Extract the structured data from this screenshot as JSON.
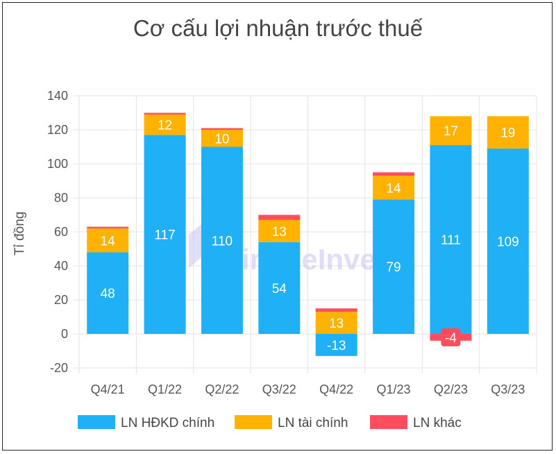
{
  "chart_data": {
    "type": "bar",
    "stacked": true,
    "title": "Cơ cấu lợi nhuận trước thuế",
    "ylabel": "Tỉ đồng",
    "xlabel": "",
    "categories": [
      "Q4/21",
      "Q1/22",
      "Q2/22",
      "Q3/22",
      "Q4/22",
      "Q1/23",
      "Q2/23",
      "Q3/23"
    ],
    "ylim": [
      -20,
      140
    ],
    "yticks": [
      -20,
      0,
      20,
      40,
      60,
      80,
      100,
      120,
      140
    ],
    "grid": true,
    "legend_position": "bottom",
    "series": [
      {
        "name": "LN HĐKD chính",
        "color": "#1fb0f5",
        "values": [
          48,
          117,
          110,
          54,
          -13,
          79,
          111,
          109
        ],
        "labels": [
          "48",
          "117",
          "110",
          "54",
          "-13",
          "79",
          "111",
          "109"
        ]
      },
      {
        "name": "LN tài chính",
        "color": "#ffb300",
        "values": [
          14,
          12,
          10,
          13,
          13,
          14,
          17,
          19
        ],
        "labels": [
          "14",
          "12",
          "10",
          "13",
          "13",
          "14",
          "17",
          "19"
        ]
      },
      {
        "name": "LN khác",
        "color": "#ff4d5e",
        "values": [
          1,
          1,
          1,
          3,
          2,
          2,
          -4,
          0
        ],
        "labels": [
          "",
          "",
          "",
          "",
          "",
          "",
          "-4",
          ""
        ]
      }
    ]
  },
  "watermark": "SimpleInvest"
}
